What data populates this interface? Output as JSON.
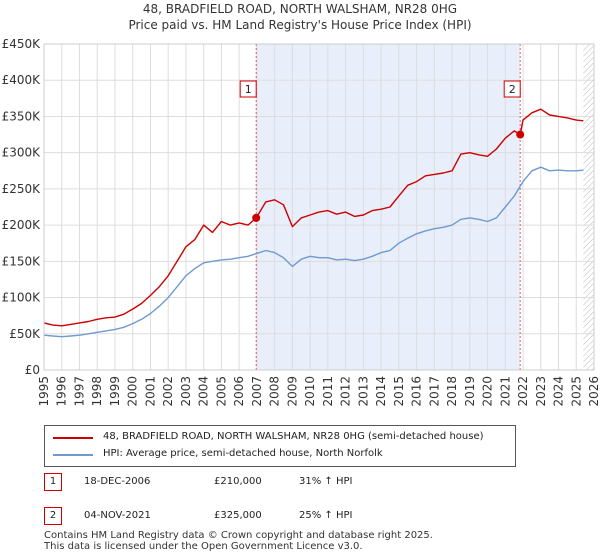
{
  "chart_data": {
    "type": "line",
    "title": "48, BRADFIELD ROAD, NORTH WALSHAM, NR28 0HG",
    "subtitle": "Price paid vs. HM Land Registry's House Price Index (HPI)",
    "xlabel": "",
    "ylabel": "",
    "xlim": [
      1995,
      2026
    ],
    "ylim": [
      0,
      450000
    ],
    "y_ticks": [
      {
        "value": 0,
        "label": "£0"
      },
      {
        "value": 50000,
        "label": "£50K"
      },
      {
        "value": 100000,
        "label": "£100K"
      },
      {
        "value": 150000,
        "label": "£150K"
      },
      {
        "value": 200000,
        "label": "£200K"
      },
      {
        "value": 250000,
        "label": "£250K"
      },
      {
        "value": 300000,
        "label": "£300K"
      },
      {
        "value": 350000,
        "label": "£350K"
      },
      {
        "value": 400000,
        "label": "£400K"
      },
      {
        "value": 450000,
        "label": "£450K"
      }
    ],
    "x_ticks": [
      "1995",
      "1996",
      "1997",
      "1998",
      "1999",
      "2000",
      "2001",
      "2002",
      "2003",
      "2004",
      "2005",
      "2006",
      "2007",
      "2008",
      "2009",
      "2010",
      "2011",
      "2012",
      "2013",
      "2014",
      "2015",
      "2016",
      "2017",
      "2018",
      "2019",
      "2020",
      "2021",
      "2022",
      "2023",
      "2024",
      "2025",
      "2026"
    ],
    "grid": true,
    "shaded_region": [
      2006.96,
      2021.84
    ],
    "forecast_hatch_start": 2025.4,
    "series": [
      {
        "name": "48, BRADFIELD ROAD, NORTH WALSHAM, NR28 0HG (semi-detached house)",
        "color": "#cc0000",
        "x": [
          1995.0,
          1995.5,
          1996.0,
          1996.5,
          1997.0,
          1997.5,
          1998.0,
          1998.5,
          1999.0,
          1999.5,
          2000.0,
          2000.5,
          2001.0,
          2001.5,
          2002.0,
          2002.5,
          2003.0,
          2003.5,
          2004.0,
          2004.5,
          2005.0,
          2005.5,
          2006.0,
          2006.5,
          2006.96,
          2007.5,
          2008.0,
          2008.5,
          2009.0,
          2009.5,
          2010.0,
          2010.5,
          2011.0,
          2011.5,
          2012.0,
          2012.5,
          2013.0,
          2013.5,
          2014.0,
          2014.5,
          2015.0,
          2015.5,
          2016.0,
          2016.5,
          2017.0,
          2017.5,
          2018.0,
          2018.5,
          2019.0,
          2019.5,
          2020.0,
          2020.5,
          2021.0,
          2021.5,
          2021.84,
          2022.0,
          2022.5,
          2023.0,
          2023.5,
          2024.0,
          2024.5,
          2025.0,
          2025.4
        ],
        "y": [
          65000,
          62000,
          61000,
          63000,
          65000,
          67000,
          70000,
          72000,
          73000,
          77000,
          84000,
          92000,
          103000,
          115000,
          130000,
          150000,
          170000,
          180000,
          200000,
          190000,
          205000,
          200000,
          203000,
          200000,
          210000,
          232000,
          235000,
          228000,
          198000,
          210000,
          214000,
          218000,
          220000,
          215000,
          218000,
          212000,
          214000,
          220000,
          222000,
          225000,
          240000,
          255000,
          260000,
          268000,
          270000,
          272000,
          275000,
          298000,
          300000,
          297000,
          295000,
          305000,
          320000,
          330000,
          325000,
          345000,
          355000,
          360000,
          352000,
          350000,
          348000,
          345000,
          344000
        ]
      },
      {
        "name": "HPI: Average price, semi-detached house, North Norfolk",
        "color": "#6f9ad0",
        "x": [
          1995.0,
          1995.5,
          1996.0,
          1996.5,
          1997.0,
          1997.5,
          1998.0,
          1998.5,
          1999.0,
          1999.5,
          2000.0,
          2000.5,
          2001.0,
          2001.5,
          2002.0,
          2002.5,
          2003.0,
          2003.5,
          2004.0,
          2004.5,
          2005.0,
          2005.5,
          2006.0,
          2006.5,
          2007.0,
          2007.5,
          2008.0,
          2008.5,
          2009.0,
          2009.5,
          2010.0,
          2010.5,
          2011.0,
          2011.5,
          2012.0,
          2012.5,
          2013.0,
          2013.5,
          2014.0,
          2014.5,
          2015.0,
          2015.5,
          2016.0,
          2016.5,
          2017.0,
          2017.5,
          2018.0,
          2018.5,
          2019.0,
          2019.5,
          2020.0,
          2020.5,
          2021.0,
          2021.5,
          2022.0,
          2022.5,
          2023.0,
          2023.5,
          2024.0,
          2024.5,
          2025.0,
          2025.4
        ],
        "y": [
          48000,
          47000,
          46000,
          47000,
          48000,
          50000,
          52000,
          54000,
          56000,
          59000,
          64000,
          70000,
          78000,
          88000,
          100000,
          115000,
          130000,
          140000,
          148000,
          150000,
          152000,
          153000,
          155000,
          157000,
          161000,
          165000,
          162000,
          155000,
          143000,
          153000,
          157000,
          155000,
          155000,
          152000,
          153000,
          151000,
          153000,
          157000,
          162000,
          165000,
          175000,
          182000,
          188000,
          192000,
          195000,
          197000,
          200000,
          208000,
          210000,
          208000,
          205000,
          210000,
          225000,
          240000,
          260000,
          275000,
          280000,
          275000,
          276000,
          275000,
          275000,
          276000
        ]
      }
    ],
    "sales": [
      {
        "id": "1",
        "x": 2006.96,
        "y": 210000
      },
      {
        "id": "2",
        "x": 2021.84,
        "y": 325000
      }
    ]
  },
  "legend": {
    "property_label": "48, BRADFIELD ROAD, NORTH WALSHAM, NR28 0HG (semi-detached house)",
    "hpi_label": "HPI: Average price, semi-detached house, North Norfolk"
  },
  "sales_table": [
    {
      "id": "1",
      "date": "18-DEC-2006",
      "price": "£210,000",
      "hpi": "31% ↑ HPI"
    },
    {
      "id": "2",
      "date": "04-NOV-2021",
      "price": "£325,000",
      "hpi": "25% ↑ HPI"
    }
  ],
  "footer": {
    "line1": "Contains HM Land Registry data © Crown copyright and database right 2025.",
    "line2": "This data is licensed under the Open Government Licence v3.0."
  },
  "colors": {
    "property": "#cc0000",
    "hpi": "#6f9ad0",
    "shade": "#e8eefa",
    "grid": "#dddddd"
  }
}
